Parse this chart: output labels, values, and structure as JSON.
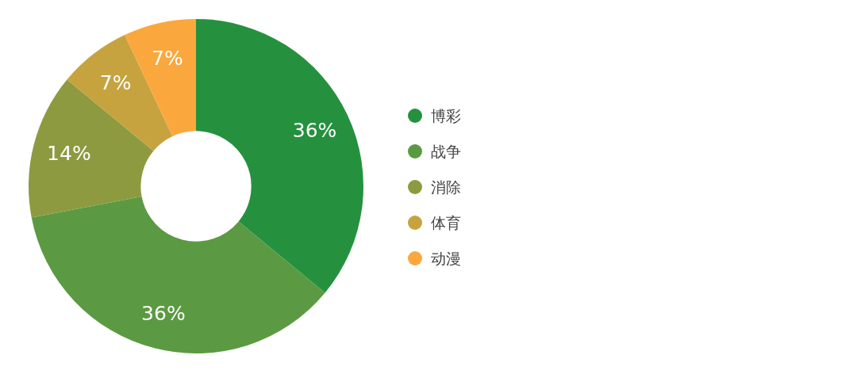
{
  "chart_data": {
    "type": "donut",
    "categories": [
      "博彩",
      "战争",
      "消除",
      "体育",
      "动漫"
    ],
    "values": [
      36,
      36,
      14,
      7,
      7
    ],
    "colors": [
      "#25913f",
      "#5b9a42",
      "#8e9a3f",
      "#c6a33f",
      "#faa83e"
    ],
    "value_labels": [
      "36%",
      "36%",
      "14%",
      "7%",
      "7%"
    ],
    "legend": "right"
  }
}
